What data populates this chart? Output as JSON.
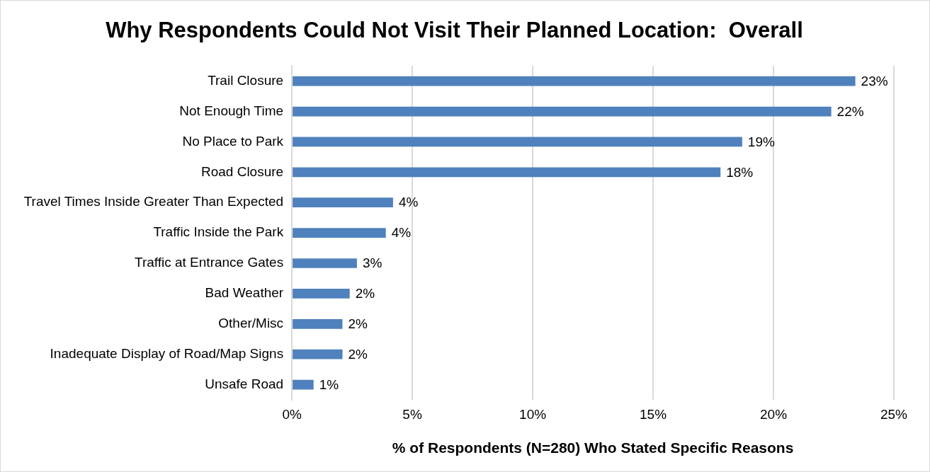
{
  "chart_data": {
    "type": "bar",
    "orientation": "horizontal",
    "title": "Why Respondents Could Not Visit Their Planned Location:  Overall",
    "xlabel": "% of Respondents (N=280) Who Stated Specific Reasons",
    "categories": [
      "Trail Closure",
      "Not Enough Time",
      "No Place to Park",
      "Road Closure",
      "Travel Times Inside Greater Than Expected",
      "Traffic Inside the Park",
      "Traffic at Entrance Gates",
      "Bad Weather",
      "Other/Misc",
      "Inadequate Display of Road/Map Signs",
      "Unsafe Road"
    ],
    "values": [
      23.4,
      22.4,
      18.7,
      17.8,
      4.2,
      3.9,
      2.7,
      2.4,
      2.1,
      2.1,
      0.9
    ],
    "value_labels": [
      "23%",
      "22%",
      "19%",
      "18%",
      "4%",
      "4%",
      "3%",
      "2%",
      "2%",
      "2%",
      "1%"
    ],
    "color": "#4f81bd",
    "xlim": [
      0,
      25
    ],
    "xticks": [
      {
        "value": 0,
        "label": "0%"
      },
      {
        "value": 5,
        "label": "5%"
      },
      {
        "value": 10,
        "label": "10%"
      },
      {
        "value": 15,
        "label": "15%"
      },
      {
        "value": 20,
        "label": "20%"
      },
      {
        "value": 25,
        "label": "25%"
      }
    ],
    "grid": "x",
    "legend": false
  }
}
